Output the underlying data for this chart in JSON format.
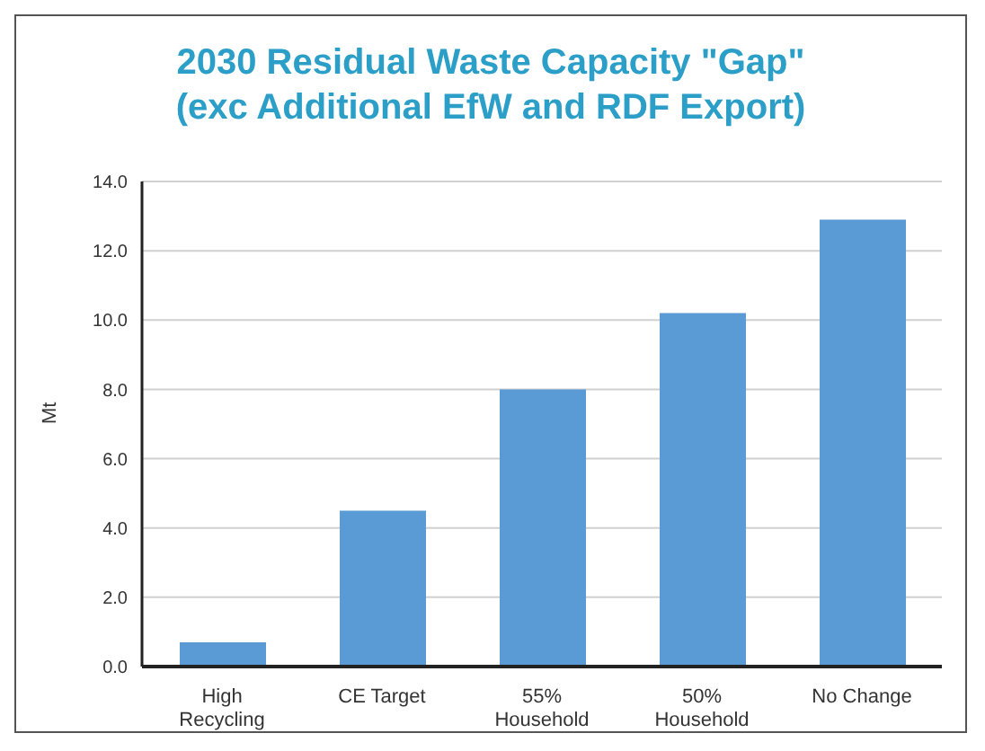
{
  "chart_data": {
    "type": "bar",
    "title": "2030 Residual Waste Capacity \"Gap\"\n(exc Additional EfW and RDF Export)",
    "ylabel": "Mt",
    "categories": [
      "High Recycling",
      "CE Target",
      "55% Household",
      "50% Household",
      "No Change"
    ],
    "values": [
      0.7,
      4.5,
      8.0,
      10.2,
      12.9
    ],
    "color": "#5b9bd5",
    "ylim": [
      0,
      14
    ],
    "yticks": [
      {
        "value": 0,
        "label": "0.0"
      },
      {
        "value": 2,
        "label": "2.0"
      },
      {
        "value": 4,
        "label": "4.0"
      },
      {
        "value": 6,
        "label": "6.0"
      },
      {
        "value": 8,
        "label": "8.0"
      },
      {
        "value": 10,
        "label": "10.0"
      },
      {
        "value": 12,
        "label": "12.0"
      },
      {
        "value": 14,
        "label": "14.0"
      }
    ],
    "grid": "y"
  }
}
